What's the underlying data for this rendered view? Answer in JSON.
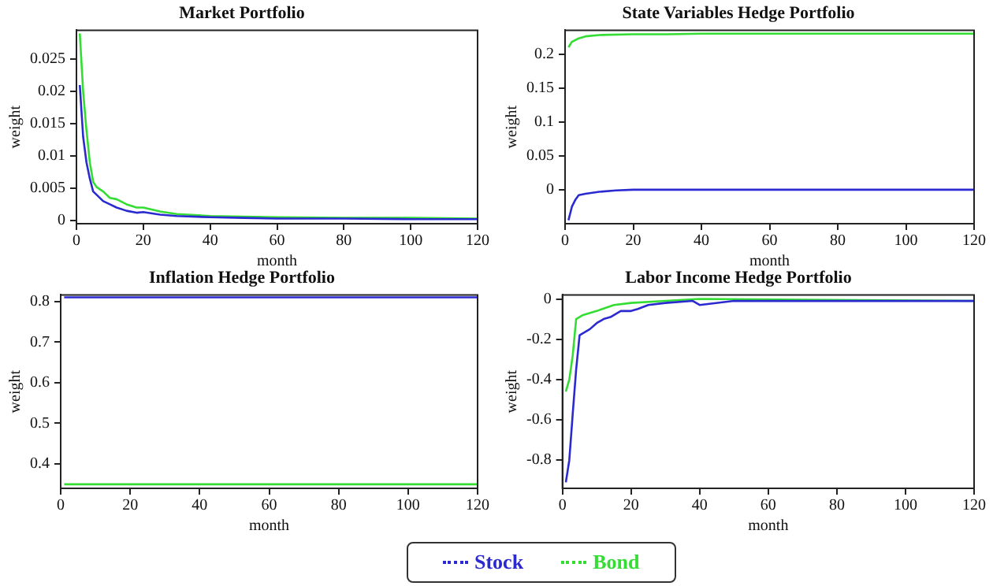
{
  "chart_data": [
    {
      "type": "line",
      "title": "Market Portfolio",
      "xlabel": "month",
      "ylabel": "weight",
      "xlim": [
        0,
        120
      ],
      "xticks": [
        0,
        20,
        40,
        60,
        80,
        100,
        120
      ],
      "ylim": [
        -0.0005,
        0.0295
      ],
      "yticks": [
        0,
        0.005,
        0.01,
        0.015,
        0.02,
        0.025
      ],
      "legend": "bottom",
      "grid": false,
      "marker": "none",
      "series": [
        {
          "name": "Stock",
          "color": "#2a2ad0",
          "x": [
            1,
            2,
            3,
            4,
            5,
            6,
            8,
            10,
            12,
            15,
            18,
            20,
            25,
            30,
            40,
            50,
            60,
            80,
            100,
            120
          ],
          "values": [
            0.021,
            0.013,
            0.009,
            0.0065,
            0.0045,
            0.004,
            0.003,
            0.0025,
            0.002,
            0.0015,
            0.0012,
            0.0013,
            0.0009,
            0.0007,
            0.0005,
            0.0004,
            0.0003,
            0.0003,
            0.0002,
            0.0002
          ]
        },
        {
          "name": "Bond",
          "color": "#33dd33",
          "x": [
            1,
            2,
            3,
            4,
            5,
            6,
            8,
            10,
            12,
            15,
            18,
            20,
            25,
            30,
            40,
            50,
            60,
            80,
            100,
            120
          ],
          "values": [
            0.029,
            0.02,
            0.014,
            0.009,
            0.006,
            0.0052,
            0.0045,
            0.0035,
            0.0033,
            0.0025,
            0.002,
            0.002,
            0.0014,
            0.001,
            0.0007,
            0.0006,
            0.0005,
            0.0004,
            0.0004,
            0.0003
          ]
        }
      ]
    },
    {
      "type": "line",
      "title": "State Variables Hedge Portfolio",
      "xlabel": "month",
      "ylabel": "weight",
      "xlim": [
        0,
        120
      ],
      "xticks": [
        0,
        20,
        40,
        60,
        80,
        100,
        120
      ],
      "ylim": [
        -0.05,
        0.235
      ],
      "yticks": [
        0,
        0.05,
        0.1,
        0.15,
        0.2
      ],
      "legend": "bottom",
      "grid": false,
      "marker": "none",
      "series": [
        {
          "name": "Stock",
          "color": "#2a2ad0",
          "x": [
            1,
            2,
            3,
            4,
            6,
            10,
            15,
            20,
            27,
            60,
            120
          ],
          "values": [
            -0.045,
            -0.025,
            -0.015,
            -0.008,
            -0.006,
            -0.003,
            -0.001,
            0,
            0,
            0,
            0
          ]
        },
        {
          "name": "Bond",
          "color": "#33dd33",
          "x": [
            1,
            2,
            4,
            6,
            10,
            20,
            30,
            40,
            80,
            120
          ],
          "values": [
            0.21,
            0.218,
            0.223,
            0.226,
            0.228,
            0.229,
            0.229,
            0.23,
            0.23,
            0.23
          ]
        }
      ]
    },
    {
      "type": "line",
      "title": "Inflation Hedge Portfolio",
      "xlabel": "month",
      "ylabel": "weight",
      "xlim": [
        0,
        120
      ],
      "xticks": [
        0,
        20,
        40,
        60,
        80,
        100,
        120
      ],
      "ylim": [
        0.34,
        0.816
      ],
      "yticks": [
        0.4,
        0.5,
        0.6,
        0.7,
        0.8
      ],
      "legend": "bottom",
      "grid": false,
      "marker": "none",
      "series": [
        {
          "name": "Stock",
          "color": "#2a2ad0",
          "x": [
            1,
            120
          ],
          "values": [
            0.81,
            0.81
          ]
        },
        {
          "name": "Bond",
          "color": "#33dd33",
          "x": [
            1,
            120
          ],
          "values": [
            0.35,
            0.35
          ]
        }
      ]
    },
    {
      "type": "line",
      "title": "Labor Income Hedge Portfolio",
      "xlabel": "month",
      "ylabel": "weight",
      "xlim": [
        0,
        120
      ],
      "xticks": [
        0,
        20,
        40,
        60,
        80,
        100,
        120
      ],
      "ylim": [
        -0.94,
        0.02
      ],
      "yticks": [
        -0.8,
        -0.6,
        -0.4,
        -0.2,
        0
      ],
      "legend": "bottom",
      "grid": false,
      "marker": "none",
      "series": [
        {
          "name": "Stock",
          "color": "#2a2ad0",
          "x": [
            1,
            2,
            3,
            4,
            5,
            8,
            10,
            12,
            14,
            17,
            20,
            22,
            25,
            30,
            38,
            40,
            50,
            80,
            120
          ],
          "values": [
            -0.91,
            -0.8,
            -0.57,
            -0.35,
            -0.18,
            -0.15,
            -0.12,
            -0.1,
            -0.09,
            -0.06,
            -0.06,
            -0.05,
            -0.03,
            -0.02,
            -0.01,
            -0.03,
            -0.01,
            -0.01,
            -0.01
          ]
        },
        {
          "name": "Bond",
          "color": "#33dd33",
          "x": [
            1,
            2,
            3,
            4,
            6,
            10,
            15,
            20,
            30,
            40,
            120
          ],
          "values": [
            -0.46,
            -0.4,
            -0.28,
            -0.1,
            -0.08,
            -0.06,
            -0.03,
            -0.02,
            -0.01,
            0,
            -0.01
          ]
        }
      ]
    }
  ]
}
